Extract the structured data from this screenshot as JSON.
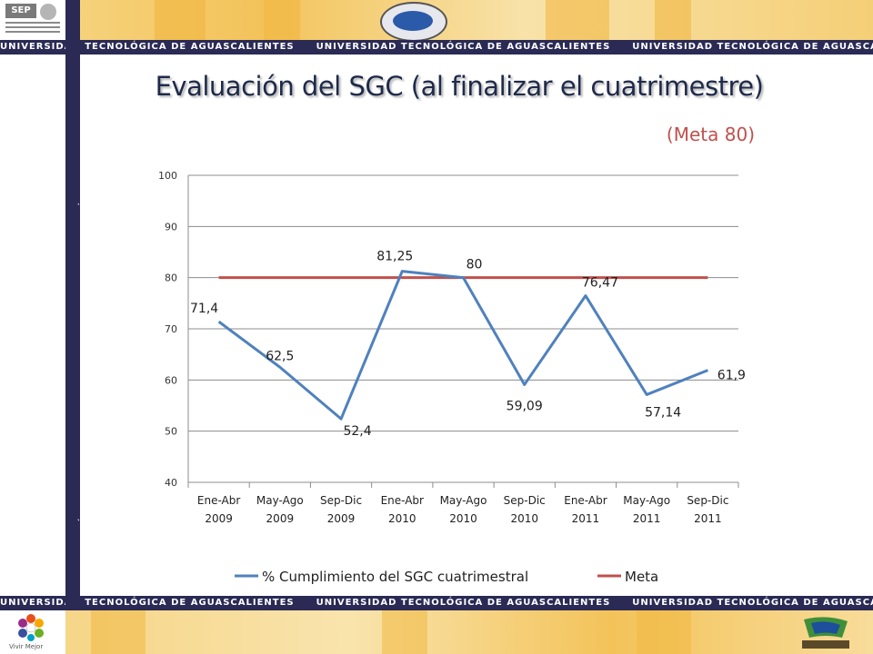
{
  "header": {
    "banner_text": "UNIVERSIDAD TECNOLÓGICA DE AGUASCALIENTES",
    "sep_logo_text": "SEP",
    "vivir_label": "Vivir Mejor"
  },
  "slide": {
    "title": "Evaluación del SGC (al finalizar el cuatrimestre)",
    "subtitle": "(Meta 80)"
  },
  "chart_data": {
    "type": "line",
    "categories": [
      [
        "Ene-Abr",
        "2009"
      ],
      [
        "May-Ago",
        "2009"
      ],
      [
        "Sep-Dic",
        "2009"
      ],
      [
        "Ene-Abr",
        "2010"
      ],
      [
        "May-Ago",
        "2010"
      ],
      [
        "Sep-Dic",
        "2010"
      ],
      [
        "Ene-Abr",
        "2011"
      ],
      [
        "May-Ago",
        "2011"
      ],
      [
        "Sep-Dic",
        "2011"
      ]
    ],
    "series": [
      {
        "name": "% Cumplimiento del SGC cuatrimestral",
        "color": "#4f81bd",
        "values": [
          71.4,
          62.5,
          52.4,
          81.25,
          80,
          59.09,
          76.47,
          57.14,
          61.9
        ],
        "labels": [
          "71,4",
          "62,5",
          "52,4",
          "81,25",
          "80",
          "59,09",
          "76,47",
          "57,14",
          "61,9"
        ]
      },
      {
        "name": "Meta",
        "color": "#c0504d",
        "values": [
          80,
          80,
          80,
          80,
          80,
          80,
          80,
          80,
          80
        ]
      }
    ],
    "ylim": [
      40,
      100
    ],
    "yticks": [
      "40",
      "50",
      "60",
      "70",
      "80",
      "90",
      "100"
    ],
    "grid": true,
    "legend": "bottom"
  }
}
